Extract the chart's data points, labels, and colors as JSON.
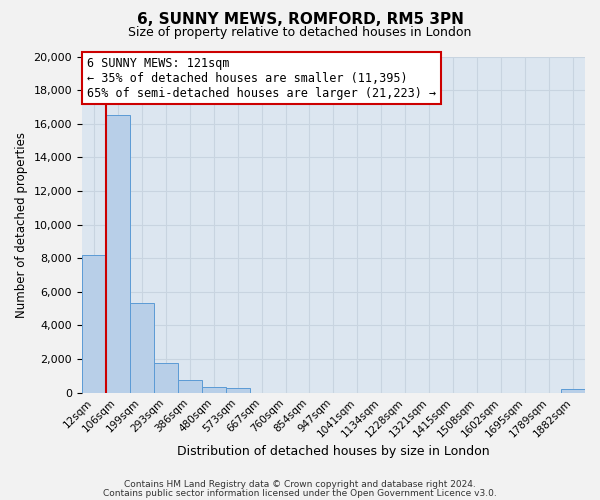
{
  "title": "6, SUNNY MEWS, ROMFORD, RM5 3PN",
  "subtitle": "Size of property relative to detached houses in London",
  "xlabel": "Distribution of detached houses by size in London",
  "ylabel": "Number of detached properties",
  "bar_labels": [
    "12sqm",
    "106sqm",
    "199sqm",
    "293sqm",
    "386sqm",
    "480sqm",
    "573sqm",
    "667sqm",
    "760sqm",
    "854sqm",
    "947sqm",
    "1041sqm",
    "1134sqm",
    "1228sqm",
    "1321sqm",
    "1415sqm",
    "1508sqm",
    "1602sqm",
    "1695sqm",
    "1789sqm",
    "1882sqm"
  ],
  "bar_values": [
    8200,
    16500,
    5300,
    1750,
    750,
    320,
    260,
    0,
    0,
    0,
    0,
    0,
    0,
    0,
    0,
    0,
    0,
    0,
    0,
    0,
    200
  ],
  "bar_color": "#b8cfe8",
  "bar_edge_color": "#5b9bd5",
  "red_line_x": 0.5,
  "ylim": [
    0,
    20000
  ],
  "yticks": [
    0,
    2000,
    4000,
    6000,
    8000,
    10000,
    12000,
    14000,
    16000,
    18000,
    20000
  ],
  "annotation_line1": "6 SUNNY MEWS: 121sqm",
  "annotation_line2": "← 35% of detached houses are smaller (11,395)",
  "annotation_line3": "65% of semi-detached houses are larger (21,223) →",
  "annotation_box_color": "#ffffff",
  "annotation_border_color": "#cc0000",
  "grid_color": "#c8d4e0",
  "bg_color": "#dce6f0",
  "fig_bg": "#f2f2f2",
  "footer_line1": "Contains HM Land Registry data © Crown copyright and database right 2024.",
  "footer_line2": "Contains public sector information licensed under the Open Government Licence v3.0."
}
